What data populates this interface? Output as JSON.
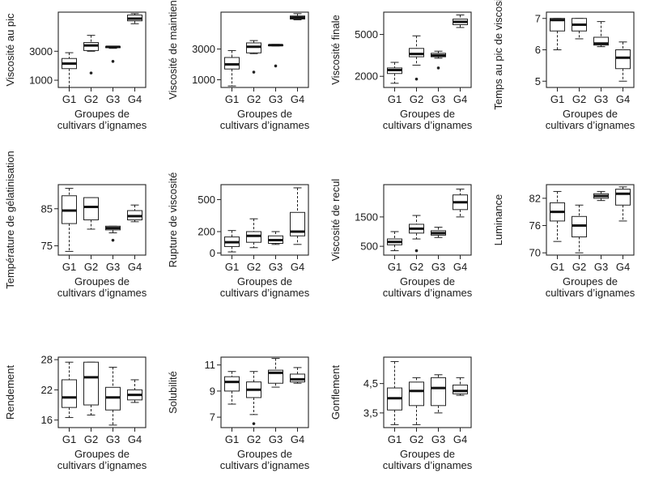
{
  "chart_data": [
    {
      "type": "box",
      "ylabel": "Viscosité au pic",
      "xlabel_lines": [
        "Groupes de",
        "cultivars d’ignames"
      ],
      "categories": [
        "G1",
        "G2",
        "G3",
        "G4"
      ],
      "yticks": [
        "1000",
        "3000"
      ],
      "yticks_values": [
        1000,
        3000
      ],
      "ylim": [
        500,
        5700
      ],
      "series": [
        {
          "min": 500,
          "q1": 1800,
          "median": 2150,
          "q3": 2500,
          "max": 2900,
          "outliers": []
        },
        {
          "min": 3000,
          "q1": 3050,
          "median": 3400,
          "q3": 3600,
          "max": 4100,
          "outliers": [
            1500
          ]
        },
        {
          "min": 3200,
          "q1": 3250,
          "median": 3300,
          "q3": 3320,
          "max": 3350,
          "outliers": [
            2300
          ]
        },
        {
          "min": 4900,
          "q1": 5100,
          "median": 5250,
          "q3": 5500,
          "max": 5600,
          "outliers": []
        }
      ]
    },
    {
      "type": "box",
      "ylabel": "Viscosité de maintien",
      "xlabel_lines": [
        "Groupes de",
        "cultivars d’ignames"
      ],
      "categories": [
        "G1",
        "G2",
        "G3",
        "G4"
      ],
      "yticks": [
        "1000",
        "3000"
      ],
      "yticks_values": [
        1000,
        3000
      ],
      "ylim": [
        500,
        5400
      ],
      "series": [
        {
          "min": 600,
          "q1": 1700,
          "median": 2000,
          "q3": 2450,
          "max": 2900,
          "outliers": []
        },
        {
          "min": 2700,
          "q1": 2750,
          "median": 3150,
          "q3": 3400,
          "max": 3550,
          "outliers": [
            1500
          ]
        },
        {
          "min": 3200,
          "q1": 3230,
          "median": 3250,
          "q3": 3270,
          "max": 3300,
          "outliers": [
            1900
          ]
        },
        {
          "min": 4900,
          "q1": 4950,
          "median": 5050,
          "q3": 5150,
          "max": 5300,
          "outliers": []
        }
      ]
    },
    {
      "type": "box",
      "ylabel": "Viscosité finale",
      "xlabel_lines": [
        "Groupes de",
        "cultivars d’ignames"
      ],
      "categories": [
        "G1",
        "G2",
        "G3",
        "G4"
      ],
      "yticks": [
        "2000",
        "5000"
      ],
      "yticks_values": [
        2000,
        5000
      ],
      "ylim": [
        1200,
        6600
      ],
      "series": [
        {
          "min": 1500,
          "q1": 2200,
          "median": 2450,
          "q3": 2600,
          "max": 3000,
          "outliers": []
        },
        {
          "min": 2800,
          "q1": 3400,
          "median": 3600,
          "q3": 4000,
          "max": 4900,
          "outliers": [
            1800
          ]
        },
        {
          "min": 3300,
          "q1": 3400,
          "median": 3500,
          "q3": 3650,
          "max": 3800,
          "outliers": [
            2600
          ]
        },
        {
          "min": 5500,
          "q1": 5700,
          "median": 5900,
          "q3": 6100,
          "max": 6400,
          "outliers": []
        }
      ]
    },
    {
      "type": "box",
      "ylabel": "Temps au pic de viscosité",
      "xlabel_lines": [
        "Groupes de",
        "cultivars d’ignames"
      ],
      "categories": [
        "G1",
        "G2",
        "G3",
        "G4"
      ],
      "yticks": [
        "5",
        "6",
        "7"
      ],
      "yticks_values": [
        5,
        6,
        7
      ],
      "ylim": [
        4.8,
        7.2
      ],
      "series": [
        {
          "min": 6.0,
          "q1": 6.6,
          "median": 6.95,
          "q3": 7.0,
          "max": 7.0,
          "outliers": []
        },
        {
          "min": 6.35,
          "q1": 6.6,
          "median": 6.8,
          "q3": 7.0,
          "max": 7.0,
          "outliers": []
        },
        {
          "min": 6.1,
          "q1": 6.15,
          "median": 6.2,
          "q3": 6.4,
          "max": 6.9,
          "outliers": []
        },
        {
          "min": 5.0,
          "q1": 5.4,
          "median": 5.75,
          "q3": 6.0,
          "max": 6.25,
          "outliers": []
        }
      ]
    },
    {
      "type": "box",
      "ylabel": "Température de gélatinisation",
      "xlabel_lines": [
        "Groupes de",
        "cultivars d’ignames"
      ],
      "categories": [
        "G1",
        "G2",
        "G3",
        "G4"
      ],
      "yticks": [
        "75",
        "85"
      ],
      "yticks_values": [
        75,
        85
      ],
      "ylim": [
        72.5,
        91.5
      ],
      "series": [
        {
          "min": 73.5,
          "q1": 81.0,
          "median": 84.5,
          "q3": 88.5,
          "max": 90.5,
          "outliers": []
        },
        {
          "min": 79.5,
          "q1": 82.0,
          "median": 85.5,
          "q3": 88.0,
          "max": 88.0,
          "outliers": []
        },
        {
          "min": 78.5,
          "q1": 79.3,
          "median": 79.8,
          "q3": 80.3,
          "max": 80.3,
          "outliers": [
            76.5
          ]
        },
        {
          "min": 81.5,
          "q1": 82.0,
          "median": 83.0,
          "q3": 84.5,
          "max": 86.0,
          "outliers": []
        }
      ]
    },
    {
      "type": "box",
      "ylabel": "Rupture de viscosité",
      "xlabel_lines": [
        "Groupes de",
        "cultivars d’ignames"
      ],
      "categories": [
        "G1",
        "G2",
        "G3",
        "G4"
      ],
      "yticks": [
        "0",
        "200",
        "500"
      ],
      "yticks_values": [
        0,
        200,
        500
      ],
      "ylim": [
        -20,
        640
      ],
      "series": [
        {
          "min": 10,
          "q1": 60,
          "median": 100,
          "q3": 150,
          "max": 210,
          "outliers": []
        },
        {
          "min": 50,
          "q1": 100,
          "median": 160,
          "q3": 200,
          "max": 320,
          "outliers": []
        },
        {
          "min": 80,
          "q1": 90,
          "median": 120,
          "q3": 160,
          "max": 200,
          "outliers": []
        },
        {
          "min": 80,
          "q1": 160,
          "median": 200,
          "q3": 380,
          "max": 610,
          "outliers": []
        }
      ]
    },
    {
      "type": "box",
      "ylabel": "Viscosité de recul",
      "xlabel_lines": [
        "Groupes de",
        "cultivars d’ignames"
      ],
      "categories": [
        "G1",
        "G2",
        "G3",
        "G4"
      ],
      "yticks": [
        "500",
        "1500"
      ],
      "yticks_values": [
        500,
        1500
      ],
      "ylim": [
        200,
        2600
      ],
      "series": [
        {
          "min": 350,
          "q1": 550,
          "median": 650,
          "q3": 750,
          "max": 1000,
          "outliers": []
        },
        {
          "min": 750,
          "q1": 950,
          "median": 1100,
          "q3": 1250,
          "max": 1550,
          "outliers": [
            350
          ]
        },
        {
          "min": 800,
          "q1": 880,
          "median": 950,
          "q3": 1030,
          "max": 1150,
          "outliers": []
        },
        {
          "min": 1500,
          "q1": 1750,
          "median": 2000,
          "q3": 2250,
          "max": 2450,
          "outliers": []
        }
      ]
    },
    {
      "type": "box",
      "ylabel": "Luminance",
      "xlabel_lines": [
        "Groupes de",
        "cultivars d’ignames"
      ],
      "categories": [
        "G1",
        "G2",
        "G3",
        "G4"
      ],
      "yticks": [
        "70",
        "76",
        "82"
      ],
      "yticks_values": [
        70,
        76,
        82
      ],
      "ylim": [
        69.5,
        85
      ],
      "series": [
        {
          "min": 72.5,
          "q1": 77.0,
          "median": 79.0,
          "q3": 81.0,
          "max": 83.5,
          "outliers": []
        },
        {
          "min": 70.0,
          "q1": 73.5,
          "median": 76.0,
          "q3": 78.0,
          "max": 80.5,
          "outliers": []
        },
        {
          "min": 81.5,
          "q1": 82.0,
          "median": 82.5,
          "q3": 83.0,
          "max": 83.5,
          "outliers": []
        },
        {
          "min": 77.0,
          "q1": 80.5,
          "median": 83.0,
          "q3": 84.0,
          "max": 84.5,
          "outliers": []
        }
      ]
    },
    {
      "type": "box",
      "ylabel": "Rendement",
      "xlabel_lines": [
        "Groupes de",
        "cultivars d’ignames"
      ],
      "categories": [
        "G1",
        "G2",
        "G3",
        "G4"
      ],
      "yticks": [
        "16",
        "22",
        "28"
      ],
      "yticks_values": [
        16,
        22,
        28
      ],
      "ylim": [
        14.5,
        28.5
      ],
      "series": [
        {
          "min": 16.5,
          "q1": 18.5,
          "median": 20.5,
          "q3": 24.0,
          "max": 27.5,
          "outliers": []
        },
        {
          "min": 17.0,
          "q1": 19.0,
          "median": 24.5,
          "q3": 27.5,
          "max": 27.5,
          "outliers": []
        },
        {
          "min": 15.0,
          "q1": 18.0,
          "median": 20.5,
          "q3": 22.5,
          "max": 26.5,
          "outliers": []
        },
        {
          "min": 19.5,
          "q1": 20.0,
          "median": 21.0,
          "q3": 22.0,
          "max": 24.0,
          "outliers": []
        }
      ]
    },
    {
      "type": "box",
      "ylabel": "Solubilité",
      "xlabel_lines": [
        "Groupes de",
        "cultivars d’ignames"
      ],
      "categories": [
        "G1",
        "G2",
        "G3",
        "G4"
      ],
      "yticks": [
        "7",
        "9",
        "11"
      ],
      "yticks_values": [
        7,
        9,
        11
      ],
      "ylim": [
        6.2,
        11.6
      ],
      "series": [
        {
          "min": 8.0,
          "q1": 9.0,
          "median": 9.7,
          "q3": 10.1,
          "max": 10.5,
          "outliers": []
        },
        {
          "min": 7.2,
          "q1": 8.5,
          "median": 9.1,
          "q3": 9.7,
          "max": 10.5,
          "outliers": [
            6.5
          ]
        },
        {
          "min": 9.3,
          "q1": 9.6,
          "median": 10.4,
          "q3": 10.6,
          "max": 11.5,
          "outliers": []
        },
        {
          "min": 9.6,
          "q1": 9.7,
          "median": 9.9,
          "q3": 10.3,
          "max": 10.8,
          "outliers": []
        }
      ]
    },
    {
      "type": "box",
      "ylabel": "Gonflement",
      "xlabel_lines": [
        "Groupes de",
        "cultivars d’ignames"
      ],
      "categories": [
        "G1",
        "G2",
        "G3",
        "G4"
      ],
      "yticks": [
        "3,5",
        "4,5"
      ],
      "yticks_values": [
        3.5,
        4.5
      ],
      "ylim": [
        3.0,
        5.4
      ],
      "series": [
        {
          "min": 3.1,
          "q1": 3.6,
          "median": 4.0,
          "q3": 4.35,
          "max": 5.25,
          "outliers": []
        },
        {
          "min": 3.1,
          "q1": 3.75,
          "median": 4.25,
          "q3": 4.55,
          "max": 4.7,
          "outliers": []
        },
        {
          "min": 3.5,
          "q1": 3.75,
          "median": 4.35,
          "q3": 4.7,
          "max": 4.8,
          "outliers": []
        },
        {
          "min": 4.1,
          "q1": 4.15,
          "median": 4.25,
          "q3": 4.45,
          "max": 4.7,
          "outliers": []
        }
      ]
    }
  ]
}
